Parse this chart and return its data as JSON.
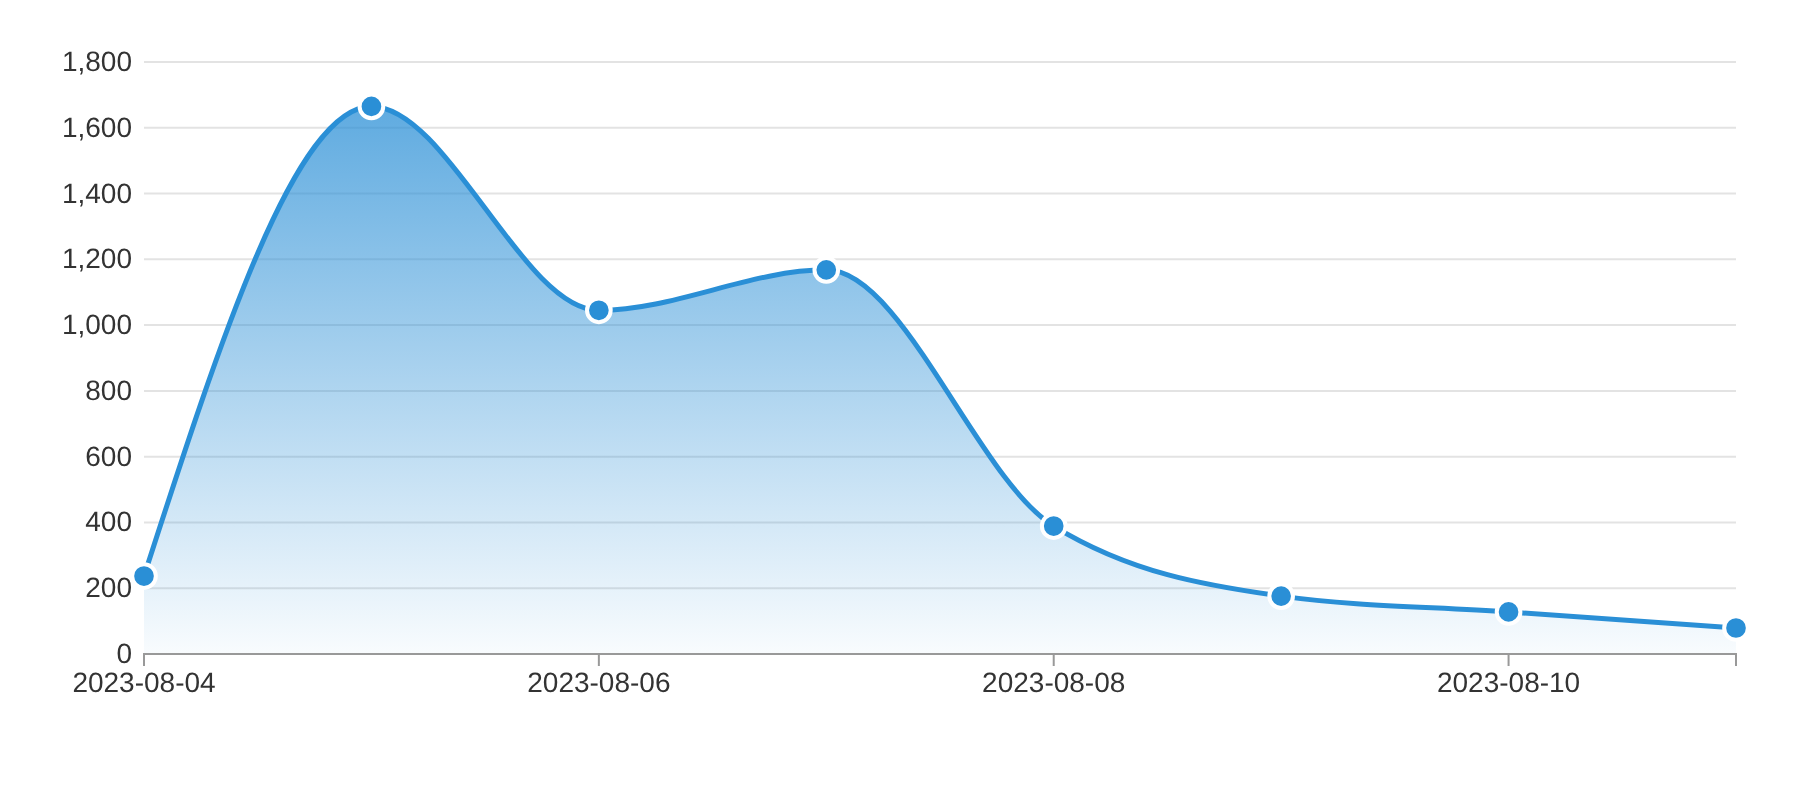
{
  "chart_data": {
    "type": "area",
    "x": [
      "2023-08-04",
      "2023-08-05",
      "2023-08-06",
      "2023-08-07",
      "2023-08-08",
      "2023-08-09",
      "2023-08-10",
      "2023-08-11"
    ],
    "series": [
      {
        "color": "#2a8fd6",
        "values": [
          237,
          1665,
          1045,
          1168,
          389,
          176,
          128,
          79
        ]
      }
    ],
    "xlim": [
      "2023-08-04",
      "2023-08-11"
    ],
    "xticks": [
      "2023-08-04",
      "2023-08-06",
      "2023-08-08",
      "2023-08-10"
    ],
    "ylim": [
      0,
      1800
    ],
    "yticks": [
      0,
      200,
      400,
      600,
      800,
      {
        "value": 1000,
        "label": "1,000"
      },
      {
        "value": 1200,
        "label": "1,200"
      },
      {
        "value": 1400,
        "label": "1,400"
      },
      {
        "value": 1600,
        "label": "1,600"
      },
      {
        "value": 1800,
        "label": "1,800"
      }
    ],
    "grid": "y",
    "marker": "circle"
  }
}
